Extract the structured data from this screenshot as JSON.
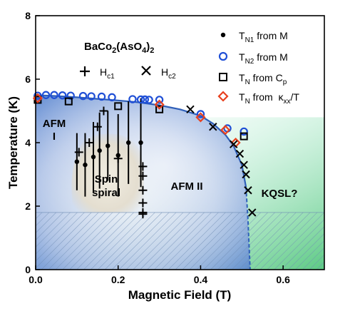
{
  "chart_data": {
    "type": "scatter",
    "title": "BaCo2(AsO4)2",
    "title_parts": [
      "BaCo",
      "2",
      "(AsO",
      "4",
      ")",
      "2"
    ],
    "xlabel": "Magnetic Field (T)",
    "ylabel": "Temperature (K)",
    "xlim": [
      0,
      0.7
    ],
    "ylim": [
      0,
      8
    ],
    "xticks": [
      "0.0",
      "0.2",
      "0.4",
      "0.6"
    ],
    "yticks": [
      "0",
      "2",
      "4",
      "6",
      "8"
    ],
    "grid": false,
    "legend_position": "top-right",
    "phase_boundary": {
      "x": [
        0.0,
        0.05,
        0.1,
        0.15,
        0.2,
        0.25,
        0.3,
        0.35,
        0.4,
        0.43,
        0.46,
        0.48,
        0.5,
        0.51,
        0.515,
        0.52
      ],
      "y": [
        5.5,
        5.47,
        5.43,
        5.38,
        5.33,
        5.27,
        5.18,
        5.05,
        4.85,
        4.6,
        4.25,
        3.9,
        3.3,
        2.6,
        1.5,
        0.0
      ]
    },
    "series": [
      {
        "name_parts": [
          "T",
          "N1",
          " from M"
        ],
        "marker": "dot",
        "color": "#000000",
        "x": [
          0.1,
          0.12,
          0.14,
          0.155,
          0.175,
          0.2,
          0.225,
          0.255
        ],
        "y": [
          3.4,
          3.3,
          3.55,
          3.75,
          3.9,
          3.6,
          4.0,
          4.0
        ],
        "yerr": [
          0.9,
          1.0,
          1.1,
          1.2,
          1.1,
          1.3,
          1.3,
          1.4
        ]
      },
      {
        "name_parts": [
          "T",
          "N2",
          " from M"
        ],
        "marker": "open-circle",
        "color": "#1f4fd6",
        "x": [
          0.005,
          0.025,
          0.045,
          0.065,
          0.085,
          0.115,
          0.135,
          0.16,
          0.185,
          0.235,
          0.255,
          0.265,
          0.275,
          0.3,
          0.4,
          0.465,
          0.505
        ],
        "y": [
          5.48,
          5.5,
          5.5,
          5.49,
          5.48,
          5.47,
          5.46,
          5.45,
          5.43,
          5.37,
          5.36,
          5.36,
          5.35,
          5.35,
          4.9,
          4.45,
          4.35
        ]
      },
      {
        "name_parts": [
          "T",
          "N",
          " from C",
          "p"
        ],
        "marker": "open-square",
        "color": "#000000",
        "x": [
          0.005,
          0.08,
          0.2,
          0.3,
          0.505
        ],
        "y": [
          5.35,
          5.3,
          5.15,
          5.05,
          4.2
        ]
      },
      {
        "name_parts": [
          "T",
          "N",
          " from  ",
          "κ",
          "xx",
          "/T"
        ],
        "marker": "open-diamond",
        "color": "#e8401e",
        "x": [
          0.005,
          0.3,
          0.4,
          0.46,
          0.485
        ],
        "y": [
          5.4,
          5.2,
          4.8,
          4.4,
          4.0
        ]
      },
      {
        "name_parts": [
          "H",
          "c1"
        ],
        "marker": "plus",
        "color": "#000000",
        "x": [
          0.105,
          0.13,
          0.15,
          0.165,
          0.2,
          0.26,
          0.26,
          0.26,
          0.26,
          0.26,
          0.26
        ],
        "y": [
          3.7,
          4.0,
          4.5,
          5.0,
          3.5,
          3.25,
          2.95,
          2.5,
          2.1,
          1.8,
          1.75
        ]
      },
      {
        "name_parts": [
          "H",
          "c2"
        ],
        "marker": "cross",
        "color": "#000000",
        "x": [
          0.375,
          0.43,
          0.48,
          0.495,
          0.505,
          0.51,
          0.515,
          0.525
        ],
        "y": [
          5.05,
          4.5,
          3.95,
          3.65,
          3.3,
          3.0,
          2.5,
          1.8
        ]
      }
    ],
    "region_labels": [
      "AFM",
      "I",
      "Spin",
      "spiral",
      "AFM II",
      "KQSL?"
    ]
  },
  "colors": {
    "afm_region": "#3f72c8",
    "spin_spiral_region": "#d9d4c8",
    "kqsl_region": "#3fc06e",
    "phase_line": "#2f5fb8",
    "hatch": "#6d8ab3"
  }
}
